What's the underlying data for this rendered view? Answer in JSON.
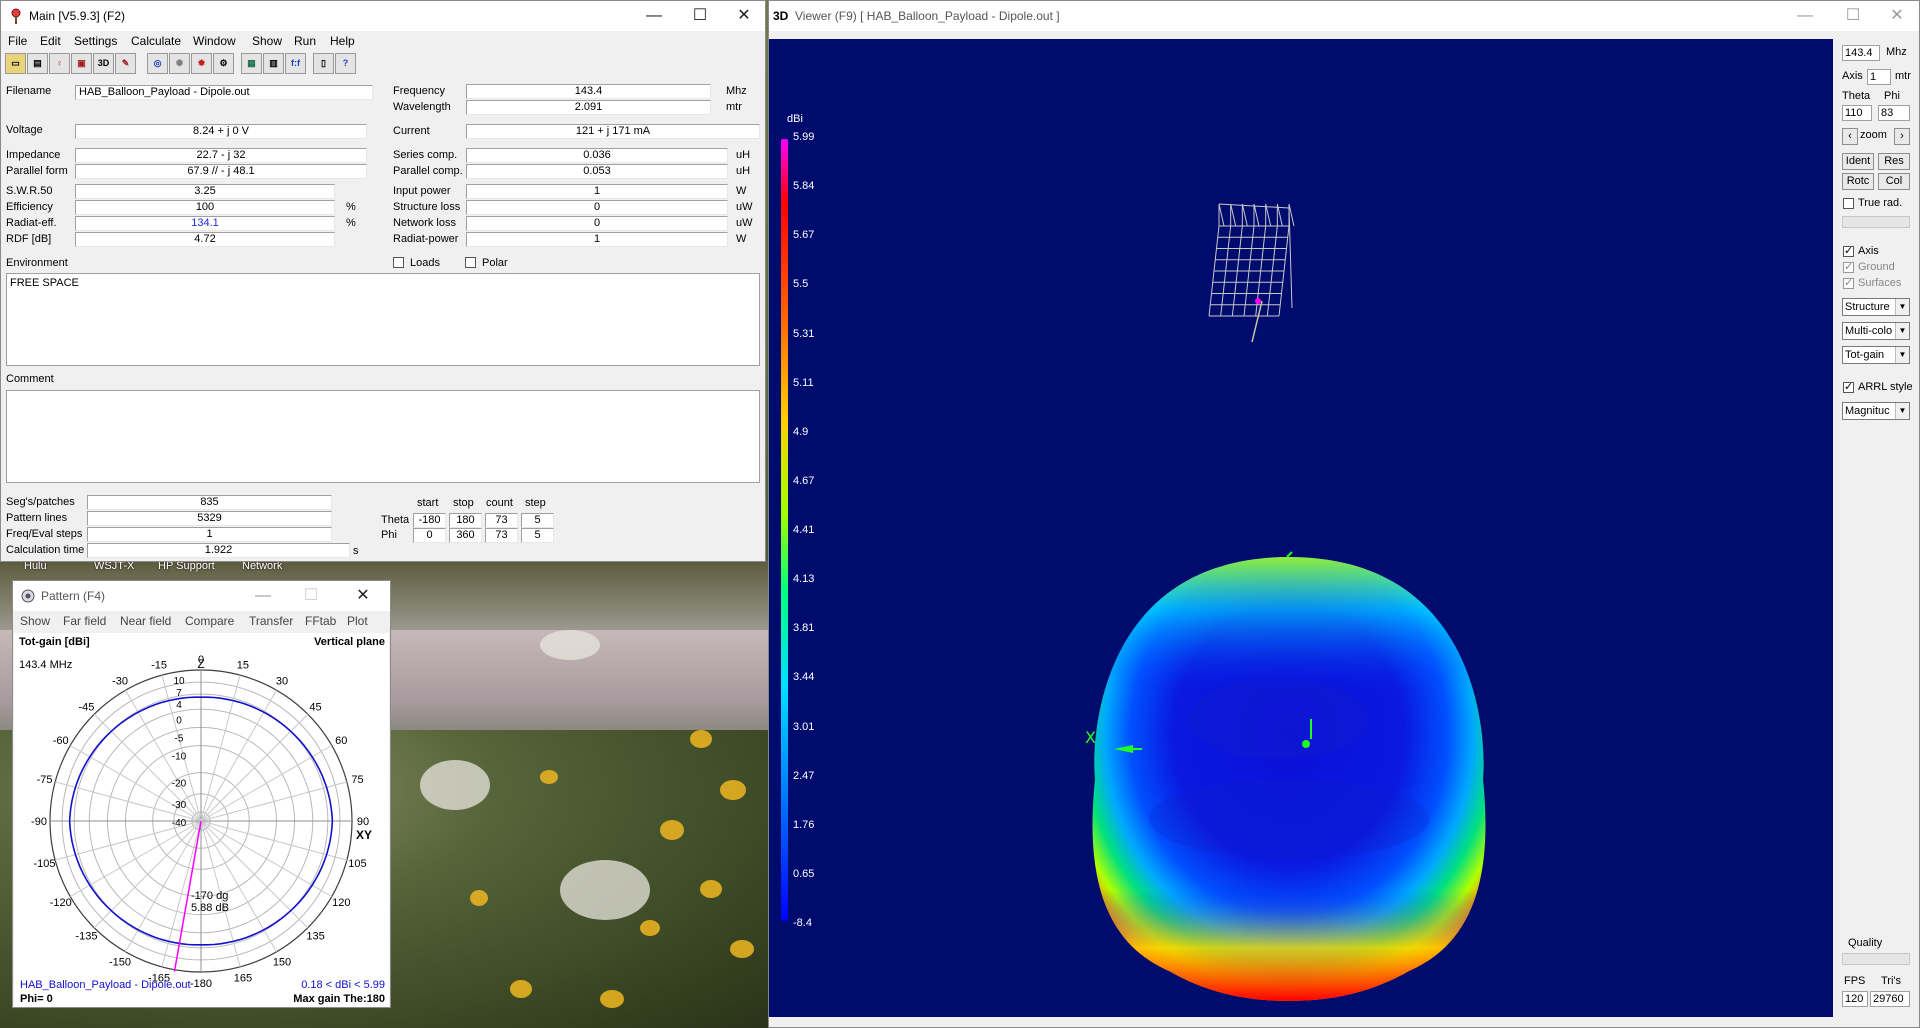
{
  "main": {
    "title": "Main [V5.9.3]  (F2)",
    "menu": [
      "File",
      "Edit",
      "Settings",
      "Calculate",
      "Window",
      "Show",
      "Run",
      "Help"
    ],
    "toolbar_icons": [
      "open-file-icon",
      "save-icon",
      "antenna-icon",
      "geometry-icon",
      "edit-icon",
      "3d-icon",
      "far-field-icon",
      "near-field-icon",
      "pattern-icon",
      "optimizer-icon",
      "calculator-icon",
      "table-icon",
      "ratio-icon",
      "book-icon",
      "help-icon"
    ],
    "toolbar_text": {
      "three_d": "3D",
      "ratio": "f:f"
    },
    "filename_label": "Filename",
    "filename": "HAB_Balloon_Payload - Dipole.out",
    "frequency_label": "Frequency",
    "frequency": "143.4",
    "frequency_unit": "Mhz",
    "wavelength_label": "Wavelength",
    "wavelength": "2.091",
    "wavelength_unit": "mtr",
    "voltage_label": "Voltage",
    "voltage": "8.24 + j 0 V",
    "current_label": "Current",
    "current": "121 + j 171 mA",
    "impedance_label": "Impedance",
    "impedance": "22.7 - j 32",
    "series_comp_label": "Series comp.",
    "series_comp": "0.036",
    "series_comp_unit": "uH",
    "parallel_form_label": "Parallel form",
    "parallel_form": "67.9 // - j 48.1",
    "parallel_comp_label": "Parallel comp.",
    "parallel_comp": "0.053",
    "parallel_comp_unit": "uH",
    "swr_label": "S.W.R.50",
    "swr": "3.25",
    "input_power_label": "Input power",
    "input_power": "1",
    "input_power_unit": "W",
    "efficiency_label": "Efficiency",
    "efficiency": "100",
    "efficiency_unit": "%",
    "structure_loss_label": "Structure loss",
    "structure_loss": "0",
    "structure_loss_unit": "uW",
    "radiat_eff_label": "Radiat-eff.",
    "radiat_eff": "134.1",
    "radiat_eff_unit": "%",
    "network_loss_label": "Network loss",
    "network_loss": "0",
    "network_loss_unit": "uW",
    "rdf_label": "RDF [dB]",
    "rdf": "4.72",
    "radiat_power_label": "Radiat-power",
    "radiat_power": "1",
    "radiat_power_unit": "W",
    "environment_label": "Environment",
    "loads_label": "Loads",
    "polar_label": "Polar",
    "environment_text": "FREE SPACE",
    "comment_label": "Comment",
    "comment_text": "",
    "segs_label": "Seg's/patches",
    "segs": "835",
    "pattern_lines_label": "Pattern lines",
    "pattern_lines": "5329",
    "freq_steps_label": "Freq/Eval steps",
    "freq_steps": "1",
    "calc_time_label": "Calculation time",
    "calc_time": "1.922",
    "calc_time_unit": "s",
    "sweep_headers": [
      "start",
      "stop",
      "count",
      "step"
    ],
    "theta_label": "Theta",
    "theta": [
      "-180",
      "180",
      "73",
      "5"
    ],
    "phi_label": "Phi",
    "phi": [
      "0",
      "360",
      "73",
      "5"
    ]
  },
  "desktop": {
    "icons": [
      "Hulu",
      "WSJT-X",
      "HP Support",
      "Network"
    ]
  },
  "pattern": {
    "title": "Pattern   (F4)",
    "menu": [
      "Show",
      "Far field",
      "Near field",
      "Compare",
      "Transfer",
      "FFtab",
      "Plot"
    ],
    "header_left": "Tot-gain [dBi]",
    "header_right": "Vertical plane",
    "freq": "143.4 MHz",
    "z_label": "Z",
    "xy_label": "XY",
    "angle_labels": [
      "0",
      "15",
      "30",
      "45",
      "60",
      "75",
      "90",
      "105",
      "120",
      "135",
      "150",
      "165",
      "-180",
      "-15",
      "-30",
      "-45",
      "-60",
      "-75",
      "-90",
      "-105",
      "-120",
      "-135",
      "-150",
      "-165"
    ],
    "ring_labels": [
      "10",
      "7",
      "4",
      "0",
      "-5",
      "-10",
      "-20",
      "-30",
      "-40"
    ],
    "cursor_angle": "-170 dg",
    "cursor_gain": "5.88 dB",
    "footer_file": "HAB_Balloon_Payload - Dipole.out",
    "footer_range": "0.18 < dBi < 5.99",
    "footer_phi": "Phi= 0",
    "footer_max": "Max gain The:180",
    "colors": {
      "pattern": "#1010d0",
      "cursor": "#ff00ff"
    }
  },
  "viewer": {
    "title_prefix": "3D",
    "title": "Viewer (F9)    [  HAB_Balloon_Payload - Dipole.out ]",
    "colorbar_unit": "dBi",
    "colorbar_ticks": [
      "5.99",
      "5.84",
      "5.67",
      "5.5",
      "5.31",
      "5.11",
      "4.9",
      "4.67",
      "4.41",
      "4.13",
      "3.81",
      "3.44",
      "3.01",
      "2.47",
      "1.76",
      "0.65",
      "-8.4"
    ],
    "axis_x_label": "X",
    "panel": {
      "freq": "143.4",
      "freq_unit": "Mhz",
      "axis_label": "Axis",
      "axis_value": "1",
      "axis_unit": "mtr",
      "theta_label": "Theta",
      "phi_label": "Phi",
      "theta_value": "110",
      "phi_value": "83",
      "zoom_label": "zoom",
      "ident_btn": "Ident",
      "res_btn": "Res",
      "rotc_btn": "Rotc",
      "col_btn": "Col",
      "true_rad": "True rad.",
      "axis_chk": "Axis",
      "ground_chk": "Ground",
      "surfaces_chk": "Surfaces",
      "sel_structure": "Structure",
      "sel_color": "Multi-colo",
      "sel_gain": "Tot-gain",
      "arrl_style": "ARRL style",
      "sel_magnitude": "Magnituc",
      "quality_label": "Quality",
      "fps_label": "FPS",
      "tris_label": "Tri's",
      "fps_value": "120",
      "tris_value": "29760"
    }
  }
}
